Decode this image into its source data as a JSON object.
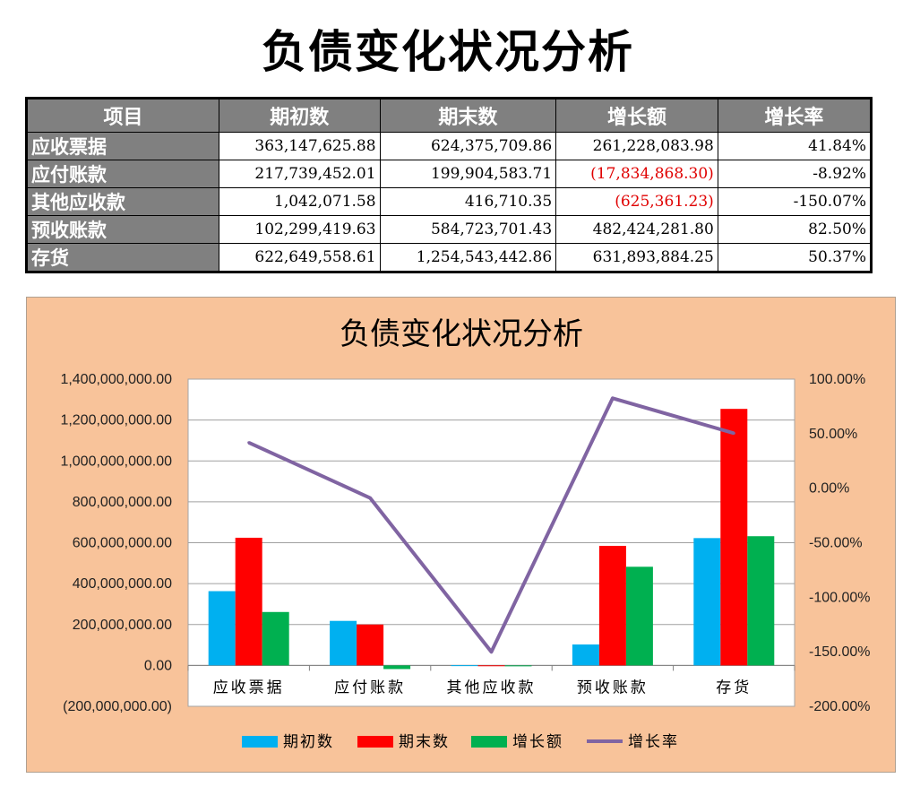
{
  "page_title": "负债变化状况分析",
  "table": {
    "headers": [
      "项目",
      "期初数",
      "期末数",
      "增长额",
      "增长率"
    ],
    "rows": [
      {
        "item": "应收票据",
        "begin": "363,147,625.88",
        "end": "624,375,709.86",
        "growth": "261,228,083.98",
        "rate": "41.84%",
        "growth_negative": false
      },
      {
        "item": "应付账款",
        "begin": "217,739,452.01",
        "end": "199,904,583.71",
        "growth": "(17,834,868.30)",
        "rate": "-8.92%",
        "growth_negative": true
      },
      {
        "item": "其他应收款",
        "begin": "1,042,071.58",
        "end": "416,710.35",
        "growth": "(625,361.23)",
        "rate": "-150.07%",
        "growth_negative": true
      },
      {
        "item": "预收账款",
        "begin": "102,299,419.63",
        "end": "584,723,701.43",
        "growth": "482,424,281.80",
        "rate": "82.50%",
        "growth_negative": false
      },
      {
        "item": "存货",
        "begin": "622,649,558.61",
        "end": "1,254,543,442.86",
        "growth": "631,893,884.25",
        "rate": "50.37%",
        "growth_negative": false
      }
    ]
  },
  "colors": {
    "begin": "#00b0f0",
    "end": "#ff0000",
    "growth": "#00b050",
    "rate": "#8064a2",
    "panel_bg": "#f8c39a",
    "negative_text": "#e00000"
  },
  "chart_data": {
    "type": "bar",
    "title": "负债变化状况分析",
    "categories": [
      "应收票据",
      "应付账款",
      "其他应收款",
      "预收账款",
      "存货"
    ],
    "series": [
      {
        "name": "期初数",
        "axis": "left",
        "values": [
          363147625.88,
          217739452.01,
          1042071.58,
          102299419.63,
          622649558.61
        ]
      },
      {
        "name": "期末数",
        "axis": "left",
        "values": [
          624375709.86,
          199904583.71,
          416710.35,
          584723701.43,
          1254543442.86
        ]
      },
      {
        "name": "增长额",
        "axis": "left",
        "values": [
          261228083.98,
          -17834868.3,
          -625361.23,
          482424281.8,
          631893884.25
        ]
      },
      {
        "name": "增长率",
        "axis": "right",
        "type": "line",
        "values": [
          41.84,
          -8.92,
          -150.07,
          82.5,
          50.37
        ]
      }
    ],
    "left_axis": {
      "ylim": [
        -200000000,
        1400000000
      ],
      "ticks": [
        1400000000,
        1200000000,
        1000000000,
        800000000,
        600000000,
        400000000,
        200000000,
        0,
        -200000000
      ],
      "tick_labels": [
        "1,400,000,000.00",
        "1,200,000,000.00",
        "1,000,000,000.00",
        "800,000,000.00",
        "600,000,000.00",
        "400,000,000.00",
        "200,000,000.00",
        "0.00",
        "(200,000,000.00)"
      ]
    },
    "right_axis": {
      "ylim": [
        -200,
        100
      ],
      "ticks": [
        100,
        50,
        0,
        -50,
        -100,
        -150,
        -200
      ],
      "tick_labels": [
        "100.00%",
        "50.00%",
        "0.00%",
        "-50.00%",
        "-100.00%",
        "-150.00%",
        "-200.00%"
      ]
    },
    "grid": true,
    "legend_position": "bottom",
    "legend": [
      "期初数",
      "期末数",
      "增长额",
      "增长率"
    ]
  }
}
